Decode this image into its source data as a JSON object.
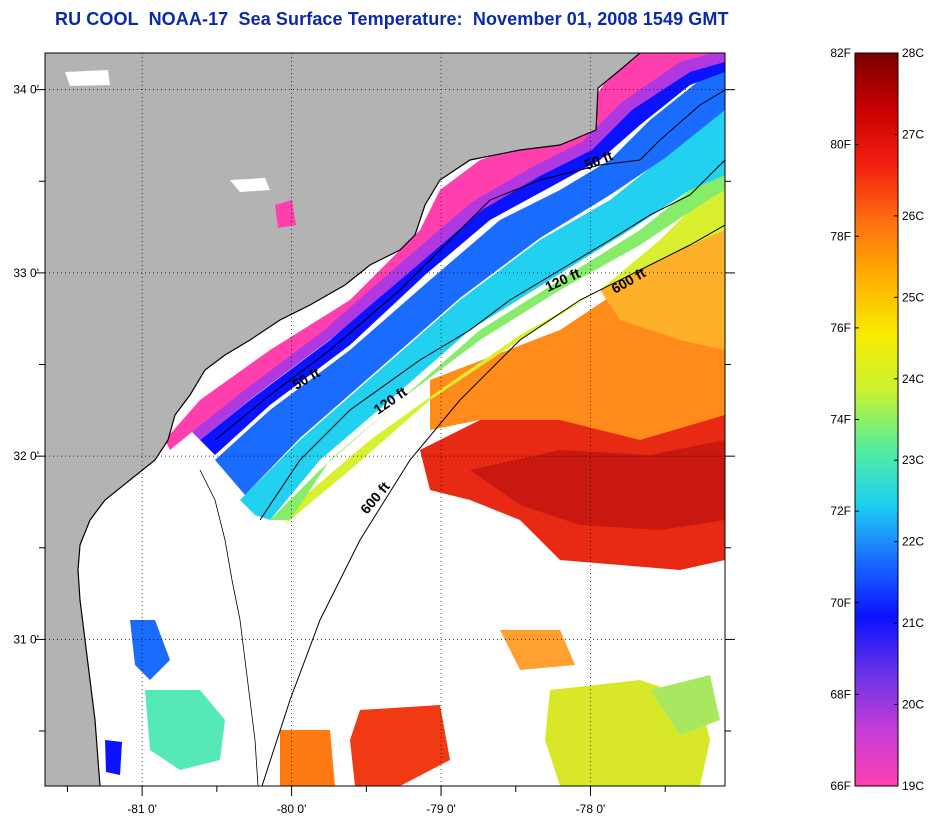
{
  "title": "RU COOL  NOAA-17  Sea Surface Temperature:  November 01, 2008 1549 GMT",
  "map": {
    "lon_range": [
      -81.65,
      -77.1
    ],
    "lat_range": [
      30.2,
      34.2
    ],
    "lon_ticks": [
      -81,
      -80,
      -79,
      -78
    ],
    "lat_ticks": [
      31,
      32,
      33,
      34
    ],
    "x_tick_labels": [
      "-81 0'",
      "-80 0'",
      "-79 0'",
      "-78 0'"
    ],
    "y_tick_labels": [
      "31 0'",
      "32 0'",
      "33 0'",
      "34 0'"
    ],
    "grid": "dotted",
    "colors": {
      "land": "#b3b3b3",
      "no_data": "#ffffff",
      "coastline": "#000000"
    }
  },
  "contours": [
    {
      "label": "50 ft"
    },
    {
      "label": "50 ft"
    },
    {
      "label": "120 ft"
    },
    {
      "label": "120 ft"
    },
    {
      "label": "600 ft"
    },
    {
      "label": "600 ft"
    }
  ],
  "colorbar": {
    "range_c": [
      19,
      28
    ],
    "range_f": [
      66,
      82
    ],
    "f_labels": [
      "66F",
      "68F",
      "70F",
      "72F",
      "74F",
      "76F",
      "78F",
      "80F",
      "82F"
    ],
    "c_labels": [
      "19C",
      "20C",
      "21C",
      "22C",
      "23C",
      "24C",
      "25C",
      "26C",
      "27C",
      "28C"
    ],
    "stops": [
      "#ff3fae",
      "#c43cd8",
      "#6a32e6",
      "#0a12ff",
      "#1a6cff",
      "#1ed0f0",
      "#55ee9a",
      "#c8f230",
      "#f8ec00",
      "#ffb000",
      "#ff7010",
      "#f42010",
      "#c80000",
      "#7a0000"
    ]
  }
}
